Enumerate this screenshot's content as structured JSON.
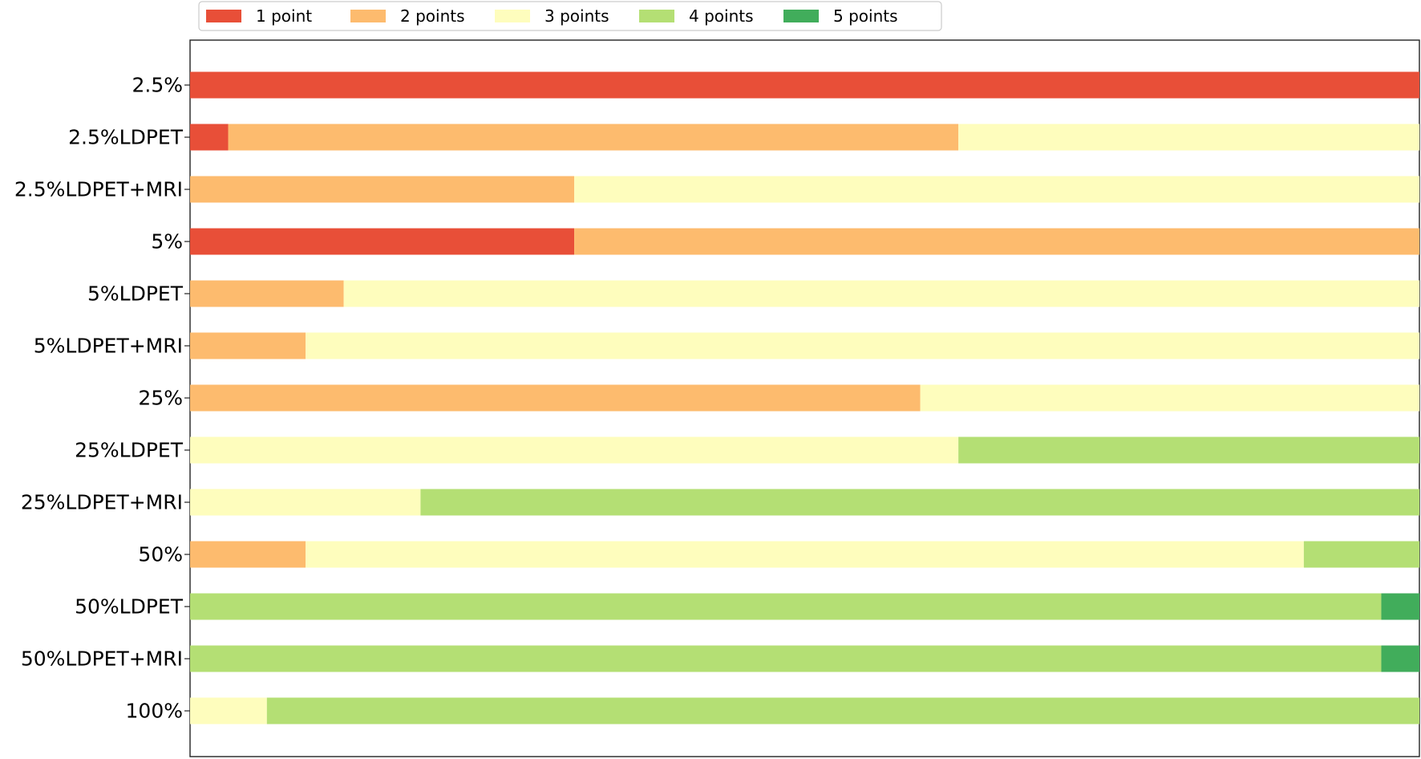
{
  "chart_data": {
    "type": "bar",
    "orientation": "horizontal",
    "stacked": true,
    "normalized": true,
    "title": "",
    "xlabel": "",
    "ylabel": "",
    "xlim": [
      0,
      1
    ],
    "grid": false,
    "legend_position": "top-left",
    "categories": [
      "2.5%",
      "2.5%LDPET",
      "2.5%LDPET+MRI",
      "5%",
      "5%LDPET",
      "5%LDPET+MRI",
      "25%",
      "25%LDPET",
      "25%LDPET+MRI",
      "50%",
      "50%LDPET",
      "50%LDPET+MRI",
      "100%"
    ],
    "series": [
      {
        "name": "1 point",
        "color": "#e84f38",
        "values": [
          1.0,
          0.031,
          0.0,
          0.3125,
          0.0,
          0.0,
          0.0,
          0.0,
          0.0,
          0.0,
          0.0,
          0.0,
          0.0
        ]
      },
      {
        "name": "2 points",
        "color": "#fdbb6e",
        "values": [
          0.0,
          0.594,
          0.3125,
          0.6875,
          0.125,
          0.094,
          0.594,
          0.0,
          0.0,
          0.094,
          0.0,
          0.0,
          0.0
        ]
      },
      {
        "name": "3 points",
        "color": "#fefdbd",
        "values": [
          0.0,
          0.375,
          0.6875,
          0.0,
          0.875,
          0.906,
          0.406,
          0.625,
          0.1875,
          0.812,
          0.0,
          0.0,
          0.0625
        ]
      },
      {
        "name": "4 points",
        "color": "#b4df74",
        "values": [
          0.0,
          0.0,
          0.0,
          0.0,
          0.0,
          0.0,
          0.0,
          0.375,
          0.8125,
          0.094,
          0.969,
          0.969,
          0.9375
        ]
      },
      {
        "name": "5 points",
        "color": "#41ad5b",
        "values": [
          0.0,
          0.0,
          0.0,
          0.0,
          0.0,
          0.0,
          0.0,
          0.0,
          0.0,
          0.0,
          0.031,
          0.031,
          0.0
        ]
      }
    ]
  }
}
